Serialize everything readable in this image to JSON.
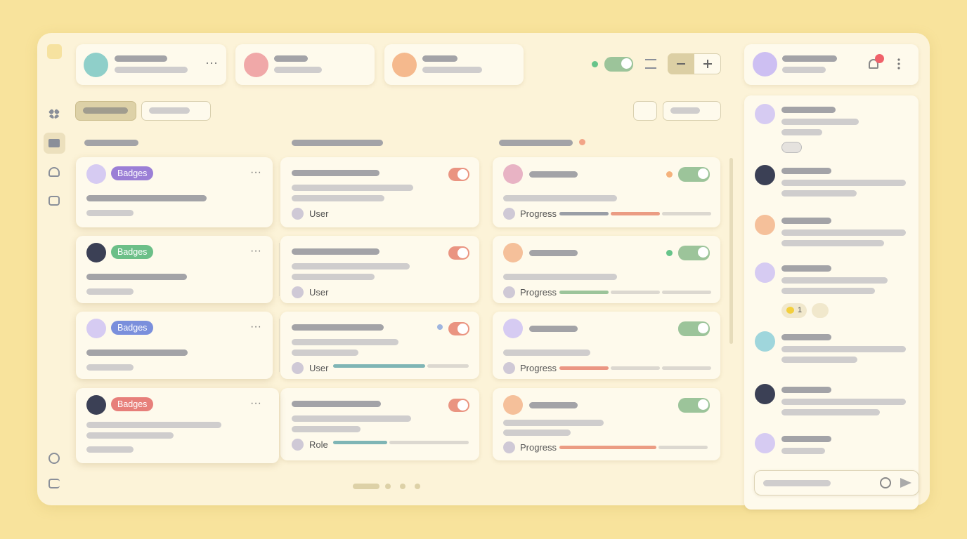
{
  "board": {
    "rows": [
      {
        "badge": "Badges",
        "person": "User",
        "status": "Progress"
      },
      {
        "badge": "Badges",
        "person": "User",
        "status": "Progress"
      },
      {
        "badge": "Badges",
        "person": "User",
        "status": "Progress"
      },
      {
        "badge": "Badges",
        "person": "Role",
        "status": "Progress"
      }
    ]
  },
  "activity": {
    "reaction_count": 1
  }
}
